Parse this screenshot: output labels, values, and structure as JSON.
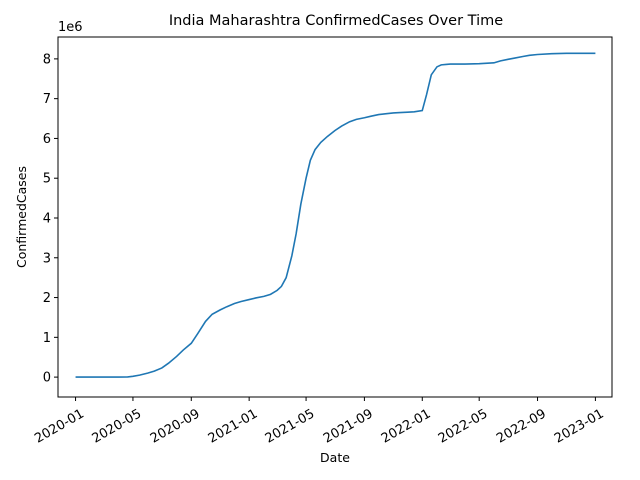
{
  "chart_data": {
    "type": "line",
    "title": "India Maharashtra ConfirmedCases Over Time",
    "xlabel": "Date",
    "ylabel": "ConfirmedCases",
    "y_offset_label": "1e6",
    "y_multiplier": 1000000,
    "xlim": [
      "2019-11-25",
      "2023-02-05"
    ],
    "ylim": [
      -0.5,
      8.55
    ],
    "x_ticks": [
      "2020-01",
      "2020-05",
      "2020-09",
      "2021-01",
      "2021-05",
      "2021-09",
      "2022-01",
      "2022-05",
      "2022-09",
      "2023-01"
    ],
    "x_tick_dates": [
      "2020-01-01",
      "2020-05-01",
      "2020-09-01",
      "2021-01-01",
      "2021-05-01",
      "2021-09-01",
      "2022-01-01",
      "2022-05-01",
      "2022-09-01",
      "2023-01-01"
    ],
    "y_ticks": [
      0,
      1,
      2,
      3,
      4,
      5,
      6,
      7,
      8
    ],
    "grid": false,
    "line_color": "#1f77b4",
    "series": [
      {
        "x": [
          "2020-01-01",
          "2020-03-01",
          "2020-04-01",
          "2020-04-20",
          "2020-05-01",
          "2020-05-15",
          "2020-06-01",
          "2020-06-15",
          "2020-07-01",
          "2020-07-15",
          "2020-08-01",
          "2020-08-15",
          "2020-09-01",
          "2020-09-15",
          "2020-10-01",
          "2020-10-15",
          "2020-11-01",
          "2020-11-15",
          "2020-12-01",
          "2020-12-15",
          "2021-01-01",
          "2021-01-15",
          "2021-02-01",
          "2021-02-15",
          "2021-03-01",
          "2021-03-10",
          "2021-03-20",
          "2021-04-01",
          "2021-04-10",
          "2021-04-20",
          "2021-05-01",
          "2021-05-10",
          "2021-05-20",
          "2021-06-01",
          "2021-06-15",
          "2021-07-01",
          "2021-07-15",
          "2021-08-01",
          "2021-08-15",
          "2021-09-01",
          "2021-09-15",
          "2021-10-01",
          "2021-10-15",
          "2021-11-01",
          "2021-11-15",
          "2021-12-01",
          "2021-12-15",
          "2022-01-01",
          "2022-01-10",
          "2022-01-20",
          "2022-02-01",
          "2022-02-10",
          "2022-02-20",
          "2022-03-01",
          "2022-04-01",
          "2022-05-01",
          "2022-06-01",
          "2022-06-15",
          "2022-07-01",
          "2022-07-15",
          "2022-08-01",
          "2022-08-15",
          "2022-09-01",
          "2022-10-01",
          "2022-11-01",
          "2022-12-01",
          "2023-01-01"
        ],
        "y": [
          0,
          0,
          0,
          0.005,
          0.02,
          0.05,
          0.1,
          0.15,
          0.23,
          0.35,
          0.52,
          0.68,
          0.85,
          1.1,
          1.4,
          1.58,
          1.69,
          1.77,
          1.85,
          1.9,
          1.95,
          1.99,
          2.03,
          2.08,
          2.18,
          2.28,
          2.5,
          3.05,
          3.6,
          4.35,
          5.0,
          5.45,
          5.72,
          5.9,
          6.05,
          6.2,
          6.31,
          6.42,
          6.48,
          6.52,
          6.56,
          6.6,
          6.62,
          6.64,
          6.65,
          6.66,
          6.67,
          6.7,
          7.1,
          7.6,
          7.8,
          7.85,
          7.86,
          7.87,
          7.87,
          7.88,
          7.9,
          7.95,
          7.99,
          8.02,
          8.06,
          8.09,
          8.11,
          8.13,
          8.14,
          8.14,
          8.14
        ]
      }
    ]
  }
}
